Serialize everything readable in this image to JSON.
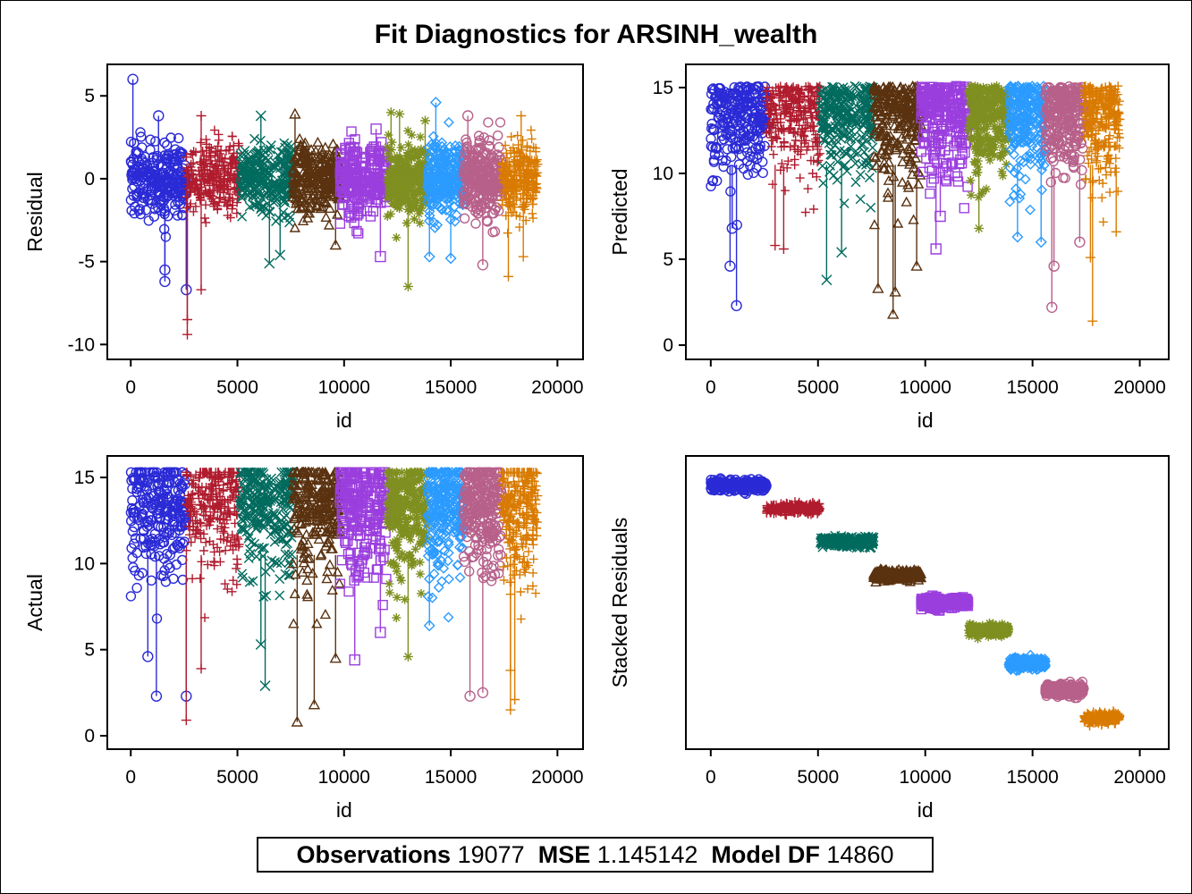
{
  "chart_data": {
    "type": "scatter",
    "title": "Fit Diagnostics for ARSINH_wealth",
    "footer": {
      "observations_label": "Observations",
      "observations_value": "19077",
      "mse_label": "MSE",
      "mse_value": "1.145142",
      "model_df_label": "Model DF",
      "model_df_value": "14860"
    },
    "groups": [
      {
        "color": "#2a2ad6",
        "marker": "circle",
        "id_range": [
          0,
          2600
        ],
        "stacked_center": 59.4,
        "outliers": {
          "residual": [
            [
              100,
              6.0
            ],
            [
              1600,
              -6.2
            ],
            [
              1600,
              -5.5
            ],
            [
              2600,
              -6.7
            ],
            [
              1300,
              3.8
            ]
          ],
          "predicted": [
            [
              1200,
              2.3
            ],
            [
              900,
              4.6
            ],
            [
              1000,
              6.8
            ]
          ],
          "actual": [
            [
              1200,
              2.3
            ],
            [
              2600,
              2.3
            ],
            [
              800,
              4.6
            ]
          ]
        }
      },
      {
        "color": "#b01c2e",
        "marker": "plus",
        "id_range": [
          2600,
          5100
        ],
        "stacked_center": 54.1,
        "outliers": {
          "residual": [
            [
              2650,
              -9.4
            ],
            [
              2650,
              -8.5
            ],
            [
              3300,
              -6.7
            ],
            [
              3300,
              3.8
            ]
          ],
          "predicted": [
            [
              3400,
              5.6
            ],
            [
              3000,
              5.8
            ]
          ],
          "actual": [
            [
              2600,
              0.9
            ],
            [
              3300,
              3.9
            ]
          ]
        }
      },
      {
        "color": "#006b5e",
        "marker": "x",
        "id_range": [
          5100,
          7600
        ],
        "stacked_center": 46.7,
        "outliers": {
          "residual": [
            [
              6500,
              -5.1
            ],
            [
              7000,
              -4.6
            ],
            [
              6100,
              3.8
            ]
          ],
          "predicted": [
            [
              5400,
              3.8
            ],
            [
              6100,
              5.4
            ]
          ],
          "actual": [
            [
              6300,
              2.9
            ],
            [
              6100,
              5.3
            ]
          ]
        }
      },
      {
        "color": "#5a3210",
        "marker": "triangle",
        "id_range": [
          7600,
          9800
        ],
        "stacked_center": 39.2,
        "outliers": {
          "residual": [
            [
              7700,
              3.9
            ],
            [
              9600,
              -4.0
            ]
          ],
          "predicted": [
            [
              8500,
              1.8
            ],
            [
              7800,
              3.3
            ],
            [
              8600,
              3.1
            ],
            [
              9600,
              4.6
            ]
          ],
          "actual": [
            [
              7800,
              0.8
            ],
            [
              8600,
              1.8
            ],
            [
              9600,
              4.5
            ]
          ]
        }
      },
      {
        "color": "#9b3ede",
        "marker": "square",
        "id_range": [
          9800,
          12000
        ],
        "stacked_center": 33.0,
        "outliers": {
          "residual": [
            [
              11700,
              -4.7
            ],
            [
              11500,
              3.0
            ]
          ],
          "predicted": [
            [
              10500,
              5.6
            ],
            [
              10700,
              7.5
            ]
          ],
          "actual": [
            [
              10500,
              4.4
            ],
            [
              11700,
              6.0
            ]
          ]
        }
      },
      {
        "color": "#7f8f20",
        "marker": "star",
        "id_range": [
          12000,
          13900
        ],
        "stacked_center": 26.8,
        "outliers": {
          "residual": [
            [
              13000,
              -6.5
            ],
            [
              12200,
              4.0
            ],
            [
              12600,
              3.9
            ],
            [
              13800,
              3.5
            ]
          ],
          "predicted": [
            [
              12500,
              6.8
            ]
          ],
          "actual": [
            [
              13000,
              4.6
            ]
          ]
        }
      },
      {
        "color": "#2b9bff",
        "marker": "diamond",
        "id_range": [
          13900,
          15600
        ],
        "stacked_center": 19.3,
        "outliers": {
          "residual": [
            [
              14300,
              4.6
            ],
            [
              14000,
              -4.7
            ],
            [
              15000,
              -4.8
            ]
          ],
          "predicted": [
            [
              14300,
              6.3
            ],
            [
              15400,
              6.0
            ]
          ],
          "actual": [
            [
              14000,
              6.4
            ]
          ]
        }
      },
      {
        "color": "#b7608a",
        "marker": "circle",
        "id_range": [
          15600,
          17400
        ],
        "stacked_center": 13.3,
        "outliers": {
          "residual": [
            [
              16500,
              -5.2
            ],
            [
              15800,
              3.8
            ]
          ],
          "predicted": [
            [
              15900,
              2.2
            ],
            [
              16000,
              4.6
            ],
            [
              17200,
              6.0
            ]
          ],
          "actual": [
            [
              15900,
              2.3
            ],
            [
              16500,
              2.5
            ]
          ]
        }
      },
      {
        "color": "#d97b00",
        "marker": "plus",
        "id_range": [
          17400,
          19100
        ],
        "stacked_center": 7.0,
        "outliers": {
          "residual": [
            [
              17700,
              -5.9
            ],
            [
              18400,
              -4.7
            ],
            [
              18300,
              3.8
            ]
          ],
          "predicted": [
            [
              17800,
              1.4
            ],
            [
              17700,
              5.1
            ],
            [
              18900,
              6.6
            ]
          ],
          "actual": [
            [
              17800,
              1.5
            ],
            [
              18000,
              2.1
            ],
            [
              17800,
              3.8
            ]
          ]
        }
      }
    ],
    "panels": [
      {
        "kind": "residual",
        "xlabel": "id",
        "ylabel": "Residual",
        "xlim": [
          -1100,
          21200
        ],
        "ylim": [
          -10.9,
          6.9
        ],
        "xticks": [
          "0",
          "5000",
          "10000",
          "15000",
          "20000"
        ],
        "xtick_values": [
          0,
          5000,
          10000,
          15000,
          20000
        ],
        "yticks": [
          "5",
          "0",
          "-5",
          "-10"
        ],
        "ytick_values": [
          5,
          0,
          -5,
          -10
        ]
      },
      {
        "kind": "predicted",
        "xlabel": "id",
        "ylabel": "Predicted",
        "xlim": [
          -1160,
          21350
        ],
        "ylim": [
          -0.83,
          16.35
        ],
        "xticks": [
          "0",
          "5000",
          "10000",
          "15000",
          "20000"
        ],
        "xtick_values": [
          0,
          5000,
          10000,
          15000,
          20000
        ],
        "yticks": [
          "15",
          "10",
          "5",
          "0"
        ],
        "ytick_values": [
          15,
          10,
          5,
          0
        ]
      },
      {
        "kind": "actual",
        "xlabel": "id",
        "ylabel": "Actual",
        "xlim": [
          -1100,
          21200
        ],
        "ylim": [
          -0.78,
          16.25
        ],
        "xticks": [
          "0",
          "5000",
          "10000",
          "15000",
          "20000"
        ],
        "xtick_values": [
          0,
          5000,
          10000,
          15000,
          20000
        ],
        "yticks": [
          "15",
          "10",
          "5",
          "0"
        ],
        "ytick_values": [
          15,
          10,
          5,
          0
        ]
      },
      {
        "kind": "stacked",
        "xlabel": "id",
        "ylabel": "Stacked Residuals",
        "xlim": [
          -1160,
          21350
        ],
        "ylim": [
          0,
          66
        ],
        "xticks": [
          "0",
          "5000",
          "10000",
          "15000",
          "20000"
        ],
        "xtick_values": [
          0,
          5000,
          10000,
          15000,
          20000
        ],
        "yticks": [],
        "ytick_values": []
      }
    ]
  }
}
